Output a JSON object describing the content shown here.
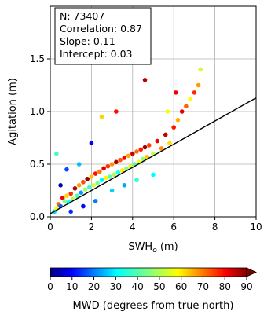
{
  "chart_data": {
    "type": "scatter",
    "xlabel": "SWH",
    "xlabel_sub": "o",
    "xlabel_unit": " (m)",
    "ylabel": "Agitation (m)",
    "xlim": [
      0,
      10
    ],
    "ylim": [
      0,
      2.0
    ],
    "xticks": [
      0,
      2,
      4,
      6,
      8,
      10
    ],
    "yticks": [
      0.0,
      0.5,
      1.0,
      1.5
    ],
    "grid": true,
    "stats": {
      "n": "N: 73407",
      "correlation": "Correlation: 0.87",
      "slope": "Slope: 0.11",
      "intercept": "Intercept: 0.03"
    },
    "regression": {
      "slope": 0.11,
      "intercept": 0.03,
      "color": "#000000"
    },
    "colorbar": {
      "label": "MWD (degrees from true north)",
      "ticks": [
        0,
        10,
        20,
        30,
        40,
        50,
        60,
        70,
        80,
        90
      ],
      "min": 0,
      "max": 90,
      "colormap": "jet",
      "extend": "max"
    },
    "points": [
      {
        "x": 0.2,
        "y": 0.05,
        "c": 30
      },
      {
        "x": 0.3,
        "y": 0.08,
        "c": 55
      },
      {
        "x": 0.4,
        "y": 0.12,
        "c": 70
      },
      {
        "x": 0.5,
        "y": 0.1,
        "c": 20
      },
      {
        "x": 0.6,
        "y": 0.18,
        "c": 80
      },
      {
        "x": 0.7,
        "y": 0.15,
        "c": 45
      },
      {
        "x": 0.8,
        "y": 0.2,
        "c": 60
      },
      {
        "x": 0.9,
        "y": 0.14,
        "c": 35
      },
      {
        "x": 1.0,
        "y": 0.22,
        "c": 75
      },
      {
        "x": 1.1,
        "y": 0.17,
        "c": 50
      },
      {
        "x": 1.2,
        "y": 0.27,
        "c": 85
      },
      {
        "x": 1.3,
        "y": 0.2,
        "c": 40
      },
      {
        "x": 1.4,
        "y": 0.3,
        "c": 65
      },
      {
        "x": 1.5,
        "y": 0.23,
        "c": 25
      },
      {
        "x": 1.6,
        "y": 0.33,
        "c": 72
      },
      {
        "x": 1.7,
        "y": 0.26,
        "c": 48
      },
      {
        "x": 1.8,
        "y": 0.36,
        "c": 88
      },
      {
        "x": 1.9,
        "y": 0.28,
        "c": 38
      },
      {
        "x": 2.0,
        "y": 0.38,
        "c": 62
      },
      {
        "x": 2.1,
        "y": 0.3,
        "c": 52
      },
      {
        "x": 2.2,
        "y": 0.41,
        "c": 78
      },
      {
        "x": 2.3,
        "y": 0.32,
        "c": 44
      },
      {
        "x": 2.4,
        "y": 0.43,
        "c": 68
      },
      {
        "x": 2.5,
        "y": 0.35,
        "c": 33
      },
      {
        "x": 2.6,
        "y": 0.46,
        "c": 82
      },
      {
        "x": 2.7,
        "y": 0.37,
        "c": 57
      },
      {
        "x": 2.8,
        "y": 0.48,
        "c": 74
      },
      {
        "x": 2.9,
        "y": 0.38,
        "c": 42
      },
      {
        "x": 3.0,
        "y": 0.5,
        "c": 66
      },
      {
        "x": 3.1,
        "y": 0.4,
        "c": 49
      },
      {
        "x": 3.2,
        "y": 0.52,
        "c": 86
      },
      {
        "x": 3.3,
        "y": 0.42,
        "c": 36
      },
      {
        "x": 3.4,
        "y": 0.54,
        "c": 71
      },
      {
        "x": 3.5,
        "y": 0.44,
        "c": 58
      },
      {
        "x": 3.6,
        "y": 0.56,
        "c": 79
      },
      {
        "x": 3.7,
        "y": 0.46,
        "c": 46
      },
      {
        "x": 3.8,
        "y": 0.58,
        "c": 64
      },
      {
        "x": 3.9,
        "y": 0.48,
        "c": 53
      },
      {
        "x": 4.0,
        "y": 0.6,
        "c": 83
      },
      {
        "x": 4.1,
        "y": 0.5,
        "c": 41
      },
      {
        "x": 4.2,
        "y": 0.62,
        "c": 69
      },
      {
        "x": 4.3,
        "y": 0.52,
        "c": 55
      },
      {
        "x": 4.4,
        "y": 0.64,
        "c": 76
      },
      {
        "x": 4.5,
        "y": 0.55,
        "c": 47
      },
      {
        "x": 4.6,
        "y": 0.66,
        "c": 87
      },
      {
        "x": 4.7,
        "y": 0.57,
        "c": 61
      },
      {
        "x": 4.8,
        "y": 0.68,
        "c": 73
      },
      {
        "x": 5.0,
        "y": 0.6,
        "c": 50
      },
      {
        "x": 5.2,
        "y": 0.72,
        "c": 80
      },
      {
        "x": 5.4,
        "y": 0.65,
        "c": 66
      },
      {
        "x": 5.6,
        "y": 0.78,
        "c": 84
      },
      {
        "x": 5.8,
        "y": 0.7,
        "c": 59
      },
      {
        "x": 6.0,
        "y": 0.85,
        "c": 77
      },
      {
        "x": 6.2,
        "y": 0.92,
        "c": 63
      },
      {
        "x": 6.4,
        "y": 1.0,
        "c": 81
      },
      {
        "x": 6.6,
        "y": 1.05,
        "c": 70
      },
      {
        "x": 6.8,
        "y": 1.12,
        "c": 56
      },
      {
        "x": 7.0,
        "y": 1.18,
        "c": 75
      },
      {
        "x": 7.2,
        "y": 1.25,
        "c": 65
      },
      {
        "x": 7.3,
        "y": 1.4,
        "c": 52
      },
      {
        "x": 0.3,
        "y": 0.6,
        "c": 40
      },
      {
        "x": 2.5,
        "y": 0.95,
        "c": 60
      },
      {
        "x": 3.2,
        "y": 1.0,
        "c": 78
      },
      {
        "x": 4.6,
        "y": 1.3,
        "c": 85
      },
      {
        "x": 5.7,
        "y": 1.0,
        "c": 55
      },
      {
        "x": 6.1,
        "y": 1.18,
        "c": 80
      },
      {
        "x": 0.8,
        "y": 0.45,
        "c": 18
      },
      {
        "x": 1.4,
        "y": 0.5,
        "c": 28
      },
      {
        "x": 2.0,
        "y": 0.7,
        "c": 10
      },
      {
        "x": 0.5,
        "y": 0.3,
        "c": 5
      },
      {
        "x": 1.0,
        "y": 0.05,
        "c": 15
      },
      {
        "x": 1.6,
        "y": 0.1,
        "c": 12
      },
      {
        "x": 2.2,
        "y": 0.15,
        "c": 22
      },
      {
        "x": 3.0,
        "y": 0.25,
        "c": 30
      },
      {
        "x": 3.6,
        "y": 0.3,
        "c": 26
      },
      {
        "x": 4.2,
        "y": 0.35,
        "c": 38
      },
      {
        "x": 5.0,
        "y": 0.4,
        "c": 34
      }
    ]
  }
}
